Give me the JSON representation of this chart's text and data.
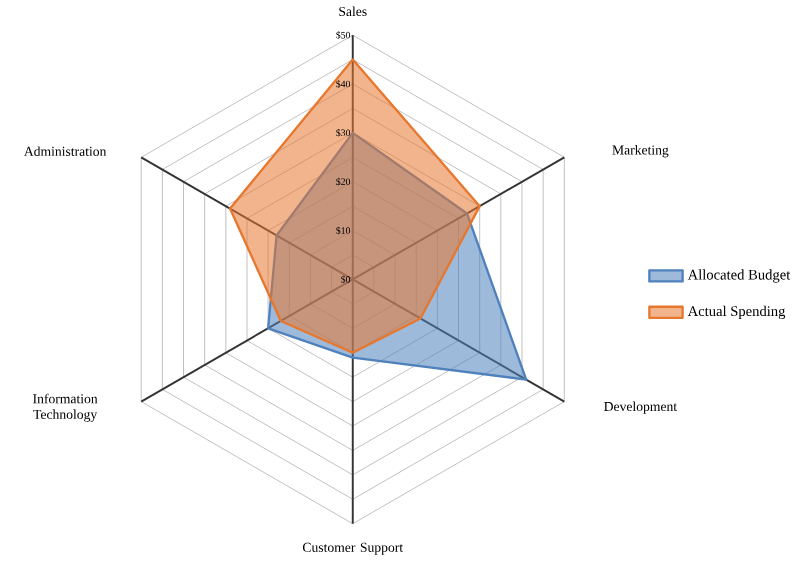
{
  "chart_data": {
    "type": "radar",
    "categories": [
      "Sales",
      "Marketing",
      "Development",
      "Customer Support",
      "Information Technology",
      "Administration"
    ],
    "series": [
      {
        "name": "Allocated Budget",
        "color": "#4f81bd",
        "values": [
          30,
          27,
          41,
          16,
          20,
          18
        ]
      },
      {
        "name": "Actual Spending",
        "color": "#e8772e",
        "values": [
          45,
          30,
          16,
          15,
          17,
          29
        ]
      }
    ],
    "ylim": [
      0,
      50
    ],
    "yticks": [
      {
        "value": 0,
        "label": "$0"
      },
      {
        "value": 10,
        "label": "$10"
      },
      {
        "value": 20,
        "label": "$20"
      },
      {
        "value": 30,
        "label": "$30"
      },
      {
        "value": 40,
        "label": "$40"
      },
      {
        "value": 50,
        "label": "$50"
      }
    ],
    "grid": true,
    "legend": "right"
  }
}
